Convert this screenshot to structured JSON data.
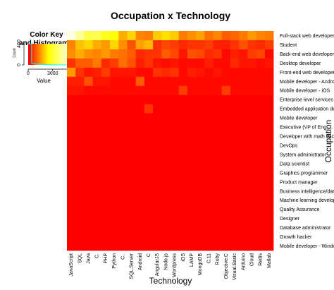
{
  "chart_data": {
    "type": "heatmap",
    "title": "Occupation x Technology",
    "xlabel": "Technology",
    "ylabel": "Occupation",
    "x_categories": [
      "JavaScript",
      "SQL",
      "Java",
      "C.",
      "PHP",
      "Python",
      "C..",
      "SQL.Server",
      "Android",
      "C",
      "AngularJS",
      "Node.js",
      "Wordpress",
      "iOS",
      "LAMP",
      "MongoDB",
      "C.11",
      "Ruby",
      "Objective.C",
      "Visual.Basic",
      "Arduino",
      "Cloud",
      "Redis",
      "Matlab"
    ],
    "y_categories": [
      "Full-stack web developer",
      "Student",
      "Back-end web developer",
      "Desktop developer",
      "Front-end web developer",
      "Mobile developer - Android",
      "Mobile developer - iOS",
      "Enterprise level services c",
      "Embedded application dev",
      "Mobile developer",
      "Executive (VP of Eng.,...",
      "Developer with math backg",
      "DevOps",
      "System administrator",
      "Data scientist",
      "Graphics programmer",
      "Product manager",
      "Business intelligence/data",
      "Machine learning develope",
      "Quality Assurance",
      "Designer",
      "Database administrator",
      "Growth hacker",
      "Mobile developer - Windo"
    ],
    "values": [
      [
        5000,
        4200,
        3300,
        3400,
        2800,
        2600,
        1700,
        2100,
        1300,
        1200,
        2000,
        2200,
        2000,
        1200,
        1400,
        1600,
        1100,
        1300,
        900,
        1000,
        1200,
        1500,
        1300,
        1200
      ],
      [
        1300,
        1900,
        2100,
        1700,
        1500,
        2100,
        1400,
        800,
        1600,
        1800,
        500,
        700,
        600,
        400,
        500,
        500,
        600,
        300,
        300,
        500,
        800,
        500,
        400,
        600
      ],
      [
        1400,
        1700,
        1400,
        1300,
        1500,
        1200,
        1100,
        900,
        400,
        500,
        500,
        900,
        700,
        200,
        800,
        700,
        400,
        500,
        100,
        300,
        200,
        600,
        700,
        100
      ],
      [
        500,
        900,
        900,
        1200,
        400,
        600,
        1100,
        800,
        300,
        500,
        200,
        100,
        200,
        100,
        100,
        100,
        300,
        100,
        100,
        400,
        200,
        200,
        100,
        200
      ],
      [
        1500,
        500,
        200,
        300,
        600,
        200,
        200,
        200,
        100,
        100,
        500,
        400,
        500,
        100,
        300,
        200,
        100,
        200,
        100,
        100,
        100,
        100,
        100,
        100
      ],
      [
        300,
        300,
        800,
        200,
        200,
        100,
        100,
        100,
        900,
        100,
        100,
        100,
        100,
        100,
        100,
        100,
        100,
        100,
        100,
        100,
        100,
        100,
        100,
        100
      ],
      [
        200,
        200,
        100,
        100,
        100,
        100,
        100,
        100,
        100,
        100,
        100,
        100,
        100,
        600,
        100,
        100,
        100,
        100,
        600,
        100,
        100,
        100,
        100,
        100
      ],
      [
        0,
        0,
        0,
        0,
        0,
        0,
        0,
        0,
        0,
        0,
        0,
        0,
        0,
        0,
        0,
        0,
        0,
        0,
        0,
        0,
        0,
        0,
        0,
        0
      ],
      [
        0,
        0,
        0,
        0,
        0,
        0,
        0,
        0,
        0,
        500,
        0,
        0,
        0,
        0,
        0,
        0,
        0,
        0,
        0,
        0,
        0,
        0,
        0,
        0
      ],
      [
        0,
        0,
        0,
        0,
        0,
        0,
        0,
        0,
        0,
        0,
        0,
        0,
        0,
        0,
        0,
        0,
        0,
        0,
        0,
        0,
        0,
        0,
        0,
        0
      ],
      [
        0,
        0,
        0,
        0,
        0,
        0,
        0,
        0,
        0,
        0,
        0,
        0,
        0,
        0,
        0,
        0,
        0,
        0,
        0,
        0,
        0,
        0,
        0,
        0
      ],
      [
        0,
        0,
        0,
        0,
        0,
        0,
        0,
        0,
        0,
        0,
        0,
        0,
        0,
        0,
        0,
        0,
        0,
        0,
        0,
        0,
        0,
        0,
        0,
        0
      ],
      [
        0,
        0,
        0,
        0,
        0,
        0,
        0,
        0,
        0,
        0,
        0,
        0,
        0,
        0,
        0,
        0,
        0,
        0,
        0,
        0,
        0,
        0,
        0,
        0
      ],
      [
        0,
        0,
        0,
        0,
        0,
        0,
        0,
        0,
        0,
        0,
        0,
        0,
        0,
        0,
        0,
        0,
        0,
        0,
        0,
        0,
        0,
        0,
        0,
        0
      ],
      [
        0,
        0,
        0,
        0,
        0,
        0,
        0,
        0,
        0,
        0,
        0,
        0,
        0,
        0,
        0,
        0,
        0,
        0,
        0,
        0,
        0,
        0,
        0,
        0
      ],
      [
        0,
        0,
        0,
        0,
        0,
        0,
        0,
        0,
        0,
        0,
        0,
        0,
        0,
        0,
        0,
        0,
        0,
        0,
        0,
        0,
        0,
        0,
        0,
        0
      ],
      [
        0,
        0,
        0,
        0,
        0,
        0,
        0,
        0,
        0,
        0,
        0,
        0,
        0,
        0,
        0,
        0,
        0,
        0,
        0,
        0,
        0,
        0,
        0,
        0
      ],
      [
        0,
        0,
        0,
        0,
        0,
        0,
        0,
        0,
        0,
        0,
        0,
        0,
        0,
        0,
        0,
        0,
        0,
        0,
        0,
        0,
        0,
        0,
        0,
        0
      ],
      [
        0,
        0,
        0,
        0,
        0,
        0,
        0,
        0,
        0,
        0,
        0,
        0,
        0,
        0,
        0,
        0,
        0,
        0,
        0,
        0,
        0,
        0,
        0,
        0
      ],
      [
        0,
        0,
        0,
        0,
        0,
        0,
        0,
        0,
        0,
        0,
        0,
        0,
        0,
        0,
        0,
        0,
        0,
        0,
        0,
        0,
        0,
        0,
        0,
        0
      ],
      [
        0,
        0,
        0,
        0,
        0,
        0,
        0,
        0,
        0,
        0,
        0,
        0,
        0,
        0,
        0,
        0,
        0,
        0,
        0,
        0,
        0,
        0,
        0,
        0
      ],
      [
        0,
        0,
        0,
        0,
        0,
        0,
        0,
        0,
        0,
        0,
        0,
        0,
        0,
        0,
        0,
        0,
        0,
        0,
        0,
        0,
        0,
        0,
        0,
        0
      ],
      [
        0,
        0,
        0,
        0,
        0,
        0,
        0,
        0,
        0,
        0,
        0,
        0,
        0,
        0,
        0,
        0,
        0,
        0,
        0,
        0,
        0,
        0,
        0,
        0
      ],
      [
        0,
        0,
        0,
        0,
        0,
        0,
        0,
        0,
        0,
        0,
        0,
        0,
        0,
        0,
        0,
        0,
        0,
        0,
        0,
        0,
        0,
        0,
        0,
        0
      ]
    ],
    "value_range": [
      0,
      5000
    ],
    "colormap": "heat",
    "color_low": "#ff0000",
    "color_high": "#ffffe0",
    "color_key": {
      "title": "Color Key\nand Histogram",
      "xlabel": "Value",
      "ylabel": "Count",
      "x_ticks": [
        0,
        3000
      ],
      "y_ticks": [
        0,
        400
      ]
    },
    "grid": false,
    "legend_placement": "top-left"
  }
}
